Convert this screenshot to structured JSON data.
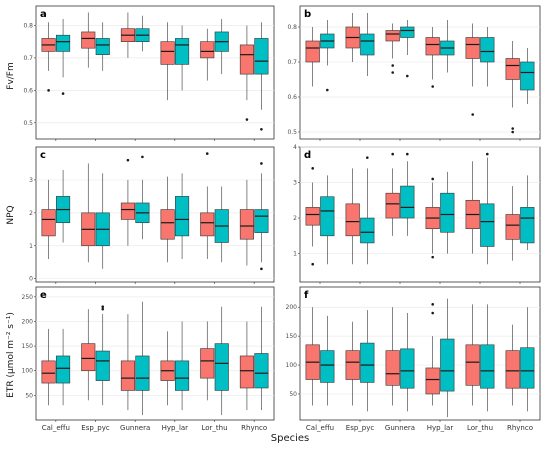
{
  "chart_data": {
    "type": "boxplot",
    "colors": {
      "group1": "#f8766d",
      "group2": "#00bfc4"
    },
    "species": [
      "Cal_effu",
      "Esp_pyc",
      "Gunnera",
      "Hyp_lar",
      "Lor_thu",
      "Rhynco"
    ],
    "xlabel": "Species",
    "ylabels": {
      "fvfm": "Fv/Fm",
      "npq": "NPQ",
      "etr": "ETR (μmol m⁻² s⁻¹)"
    },
    "panels": [
      {
        "id": "a",
        "metric": "fvfm",
        "ylim": [
          0.45,
          0.86
        ],
        "yticks": [
          0.5,
          0.6,
          0.7,
          0.8
        ],
        "boxes": [
          [
            {
              "min": 0.66,
              "q1": 0.72,
              "med": 0.74,
              "q3": 0.76,
              "max": 0.81,
              "out": [
                0.6
              ]
            },
            {
              "min": 0.64,
              "q1": 0.72,
              "med": 0.75,
              "q3": 0.77,
              "max": 0.82,
              "out": [
                0.59
              ]
            }
          ],
          [
            {
              "min": 0.67,
              "q1": 0.73,
              "med": 0.76,
              "q3": 0.78,
              "max": 0.84,
              "out": []
            },
            {
              "min": 0.66,
              "q1": 0.71,
              "med": 0.74,
              "q3": 0.76,
              "max": 0.81,
              "out": []
            }
          ],
          [
            {
              "min": 0.7,
              "q1": 0.75,
              "med": 0.77,
              "q3": 0.79,
              "max": 0.84,
              "out": []
            },
            {
              "min": 0.72,
              "q1": 0.75,
              "med": 0.77,
              "q3": 0.79,
              "max": 0.83,
              "out": []
            }
          ],
          [
            {
              "min": 0.57,
              "q1": 0.68,
              "med": 0.72,
              "q3": 0.75,
              "max": 0.81,
              "out": []
            },
            {
              "min": 0.6,
              "q1": 0.68,
              "med": 0.74,
              "q3": 0.76,
              "max": 0.8,
              "out": []
            }
          ],
          [
            {
              "min": 0.63,
              "q1": 0.7,
              "med": 0.72,
              "q3": 0.75,
              "max": 0.79,
              "out": []
            },
            {
              "min": 0.65,
              "q1": 0.72,
              "med": 0.75,
              "q3": 0.78,
              "max": 0.82,
              "out": []
            }
          ],
          [
            {
              "min": 0.57,
              "q1": 0.65,
              "med": 0.71,
              "q3": 0.74,
              "max": 0.8,
              "out": [
                0.51
              ]
            },
            {
              "min": 0.54,
              "q1": 0.65,
              "med": 0.69,
              "q3": 0.76,
              "max": 0.81,
              "out": [
                0.48
              ]
            }
          ]
        ]
      },
      {
        "id": "b",
        "metric": "fvfm",
        "ylim": [
          0.48,
          0.86
        ],
        "yticks": [
          0.5,
          0.6,
          0.7,
          0.8
        ],
        "boxes": [
          [
            {
              "min": 0.63,
              "q1": 0.7,
              "med": 0.74,
              "q3": 0.76,
              "max": 0.8,
              "out": []
            },
            {
              "min": 0.69,
              "q1": 0.74,
              "med": 0.76,
              "q3": 0.78,
              "max": 0.82,
              "out": [
                0.62
              ]
            }
          ],
          [
            {
              "min": 0.7,
              "q1": 0.74,
              "med": 0.77,
              "q3": 0.8,
              "max": 0.84,
              "out": []
            },
            {
              "min": 0.66,
              "q1": 0.72,
              "med": 0.76,
              "q3": 0.78,
              "max": 0.84,
              "out": []
            }
          ],
          [
            {
              "min": 0.71,
              "q1": 0.76,
              "med": 0.78,
              "q3": 0.79,
              "max": 0.81,
              "out": [
                0.67,
                0.69
              ]
            },
            {
              "min": 0.72,
              "q1": 0.77,
              "med": 0.79,
              "q3": 0.8,
              "max": 0.82,
              "out": [
                0.66
              ]
            }
          ],
          [
            {
              "min": 0.65,
              "q1": 0.72,
              "med": 0.75,
              "q3": 0.77,
              "max": 0.8,
              "out": [
                0.63
              ]
            },
            {
              "min": 0.67,
              "q1": 0.72,
              "med": 0.74,
              "q3": 0.76,
              "max": 0.82,
              "out": []
            }
          ],
          [
            {
              "min": 0.63,
              "q1": 0.71,
              "med": 0.75,
              "q3": 0.77,
              "max": 0.81,
              "out": [
                0.55
              ]
            },
            {
              "min": 0.63,
              "q1": 0.7,
              "med": 0.73,
              "q3": 0.77,
              "max": 0.8,
              "out": []
            }
          ],
          [
            {
              "min": 0.57,
              "q1": 0.65,
              "med": 0.69,
              "q3": 0.71,
              "max": 0.76,
              "out": [
                0.51,
                0.5
              ]
            },
            {
              "min": 0.58,
              "q1": 0.62,
              "med": 0.67,
              "q3": 0.7,
              "max": 0.74,
              "out": []
            }
          ]
        ]
      },
      {
        "id": "c",
        "metric": "npq",
        "ylim": [
          -0.1,
          4.0
        ],
        "yticks": [
          0,
          1,
          2,
          3
        ],
        "boxes": [
          [
            {
              "min": 0.6,
              "q1": 1.3,
              "med": 1.8,
              "q3": 2.1,
              "max": 3.0,
              "out": []
            },
            {
              "min": 1.1,
              "q1": 1.7,
              "med": 2.1,
              "q3": 2.5,
              "max": 3.3,
              "out": []
            }
          ],
          [
            {
              "min": 0.5,
              "q1": 1.0,
              "med": 1.5,
              "q3": 2.0,
              "max": 3.5,
              "out": []
            },
            {
              "min": 0.3,
              "q1": 1.0,
              "med": 1.5,
              "q3": 2.0,
              "max": 3.2,
              "out": []
            }
          ],
          [
            {
              "min": 1.0,
              "q1": 1.8,
              "med": 2.1,
              "q3": 2.3,
              "max": 3.0,
              "out": [
                3.6
              ]
            },
            {
              "min": 1.2,
              "q1": 1.7,
              "med": 2.0,
              "q3": 2.3,
              "max": 3.0,
              "out": [
                3.7
              ]
            }
          ],
          [
            {
              "min": 0.5,
              "q1": 1.2,
              "med": 1.7,
              "q3": 2.1,
              "max": 3.1,
              "out": []
            },
            {
              "min": 0.6,
              "q1": 1.3,
              "med": 1.8,
              "q3": 2.5,
              "max": 3.2,
              "out": []
            }
          ],
          [
            {
              "min": 0.6,
              "q1": 1.3,
              "med": 1.7,
              "q3": 2.0,
              "max": 2.8,
              "out": [
                3.8
              ]
            },
            {
              "min": 0.5,
              "q1": 1.1,
              "med": 1.6,
              "q3": 2.1,
              "max": 2.8,
              "out": []
            }
          ],
          [
            {
              "min": 0.4,
              "q1": 1.2,
              "med": 1.6,
              "q3": 2.1,
              "max": 3.0,
              "out": []
            },
            {
              "min": 0.5,
              "q1": 1.4,
              "med": 1.9,
              "q3": 2.1,
              "max": 3.2,
              "out": [
                3.5,
                0.3
              ]
            }
          ]
        ]
      },
      {
        "id": "d",
        "metric": "npq",
        "ylim": [
          0.2,
          4.0
        ],
        "yticks": [
          1,
          2,
          3,
          4
        ],
        "boxes": [
          [
            {
              "min": 1.2,
              "q1": 1.8,
              "med": 2.1,
              "q3": 2.3,
              "max": 3.0,
              "out": [
                3.4,
                0.7
              ]
            },
            {
              "min": 0.7,
              "q1": 1.5,
              "med": 2.2,
              "q3": 2.6,
              "max": 3.2,
              "out": []
            }
          ],
          [
            {
              "min": 0.7,
              "q1": 1.5,
              "med": 1.9,
              "q3": 2.4,
              "max": 3.4,
              "out": []
            },
            {
              "min": 0.7,
              "q1": 1.3,
              "med": 1.6,
              "q3": 2.0,
              "max": 3.4,
              "out": [
                3.7
              ]
            }
          ],
          [
            {
              "min": 1.5,
              "q1": 2.0,
              "med": 2.4,
              "q3": 2.7,
              "max": 3.4,
              "out": [
                3.8
              ]
            },
            {
              "min": 1.5,
              "q1": 2.0,
              "med": 2.3,
              "q3": 2.9,
              "max": 3.6,
              "out": [
                3.8
              ]
            }
          ],
          [
            {
              "min": 1.0,
              "q1": 1.7,
              "med": 2.0,
              "q3": 2.3,
              "max": 3.0,
              "out": [
                0.9,
                3.1
              ]
            },
            {
              "min": 1.0,
              "q1": 1.6,
              "med": 2.1,
              "q3": 2.7,
              "max": 3.3,
              "out": []
            }
          ],
          [
            {
              "min": 1.0,
              "q1": 1.7,
              "med": 2.1,
              "q3": 2.5,
              "max": 3.6,
              "out": []
            },
            {
              "min": 0.7,
              "q1": 1.2,
              "med": 1.9,
              "q3": 2.4,
              "max": 3.7,
              "out": [
                3.8
              ]
            }
          ],
          [
            {
              "min": 0.8,
              "q1": 1.4,
              "med": 1.8,
              "q3": 2.1,
              "max": 2.9,
              "out": []
            },
            {
              "min": 1.1,
              "q1": 1.3,
              "med": 2.0,
              "q3": 2.3,
              "max": 3.2,
              "out": []
            }
          ]
        ]
      },
      {
        "id": "e",
        "metric": "etr",
        "ylim": [
          0,
          270
        ],
        "yticks": [
          50,
          100,
          150,
          200,
          250
        ],
        "boxes": [
          [
            {
              "min": 30,
              "q1": 75,
              "med": 95,
              "q3": 120,
              "max": 185,
              "out": []
            },
            {
              "min": 30,
              "q1": 75,
              "med": 105,
              "q3": 130,
              "max": 185,
              "out": []
            }
          ],
          [
            {
              "min": 40,
              "q1": 100,
              "med": 125,
              "q3": 155,
              "max": 225,
              "out": []
            },
            {
              "min": 30,
              "q1": 80,
              "med": 120,
              "q3": 140,
              "max": 215,
              "out": [
                225,
                230
              ]
            }
          ],
          [
            {
              "min": 20,
              "q1": 60,
              "med": 85,
              "q3": 120,
              "max": 215,
              "out": []
            },
            {
              "min": 10,
              "q1": 60,
              "med": 85,
              "q3": 130,
              "max": 240,
              "out": []
            }
          ],
          [
            {
              "min": 30,
              "q1": 80,
              "med": 100,
              "q3": 120,
              "max": 180,
              "out": []
            },
            {
              "min": 20,
              "q1": 60,
              "med": 85,
              "q3": 120,
              "max": 200,
              "out": []
            }
          ],
          [
            {
              "min": 40,
              "q1": 85,
              "med": 120,
              "q3": 145,
              "max": 200,
              "out": []
            },
            {
              "min": 10,
              "q1": 60,
              "med": 115,
              "q3": 155,
              "max": 230,
              "out": []
            }
          ],
          [
            {
              "min": 20,
              "q1": 65,
              "med": 100,
              "q3": 130,
              "max": 200,
              "out": []
            },
            {
              "min": 20,
              "q1": 65,
              "med": 95,
              "q3": 135,
              "max": 230,
              "out": []
            }
          ]
        ]
      },
      {
        "id": "f",
        "metric": "etr",
        "ylim": [
          5,
          235
        ],
        "yticks": [
          50,
          100,
          150,
          200
        ],
        "boxes": [
          [
            {
              "min": 30,
              "q1": 75,
              "med": 105,
              "q3": 135,
              "max": 200,
              "out": []
            },
            {
              "min": 30,
              "q1": 70,
              "med": 100,
              "q3": 125,
              "max": 185,
              "out": []
            }
          ],
          [
            {
              "min": 30,
              "q1": 75,
              "med": 105,
              "q3": 125,
              "max": 175,
              "out": []
            },
            {
              "min": 20,
              "q1": 70,
              "med": 100,
              "q3": 138,
              "max": 195,
              "out": []
            }
          ],
          [
            {
              "min": 30,
              "q1": 65,
              "med": 85,
              "q3": 125,
              "max": 200,
              "out": []
            },
            {
              "min": 20,
              "q1": 60,
              "med": 90,
              "q3": 128,
              "max": 190,
              "out": []
            }
          ],
          [
            {
              "min": 30,
              "q1": 50,
              "med": 75,
              "q3": 95,
              "max": 150,
              "out": [
                190,
                205
              ]
            },
            {
              "min": 10,
              "q1": 55,
              "med": 90,
              "q3": 145,
              "max": 215,
              "out": []
            }
          ],
          [
            {
              "min": 30,
              "q1": 65,
              "med": 105,
              "q3": 135,
              "max": 205,
              "out": []
            },
            {
              "min": 20,
              "q1": 60,
              "med": 90,
              "q3": 135,
              "max": 205,
              "out": []
            }
          ],
          [
            {
              "min": 30,
              "q1": 60,
              "med": 90,
              "q3": 125,
              "max": 170,
              "out": []
            },
            {
              "min": 20,
              "q1": 60,
              "med": 90,
              "q3": 130,
              "max": 200,
              "out": []
            }
          ]
        ]
      }
    ]
  }
}
